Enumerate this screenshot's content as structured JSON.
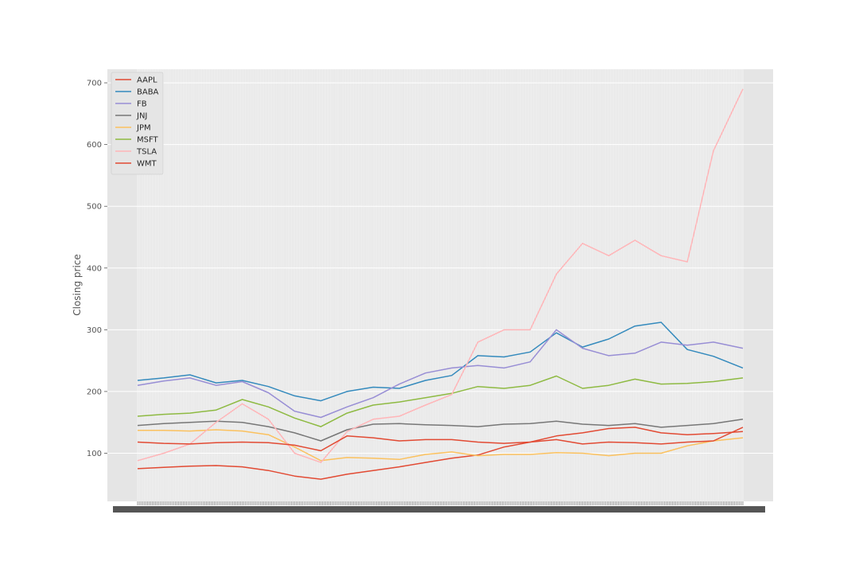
{
  "chart_data": {
    "type": "line",
    "title": "",
    "xlabel": "",
    "ylabel": "Closing price",
    "ylim": [
      22,
      722
    ],
    "yticks": [
      100,
      200,
      300,
      400,
      500,
      600,
      700
    ],
    "grid": true,
    "legend": "top-left",
    "x": [
      0,
      16,
      32,
      48,
      64,
      80,
      96,
      112,
      128,
      144,
      160,
      176,
      192,
      208,
      224,
      240,
      256,
      272,
      288,
      304,
      320,
      336,
      352,
      370
    ],
    "series": [
      {
        "name": "AAPL",
        "color": "#E24A33",
        "values": [
          75,
          77,
          79,
          80,
          78,
          72,
          63,
          58,
          66,
          72,
          78,
          85,
          92,
          97,
          110,
          118,
          128,
          133,
          140,
          142,
          133,
          130,
          132,
          135
        ]
      },
      {
        "name": "BABA",
        "color": "#348ABD",
        "values": [
          218,
          222,
          227,
          214,
          218,
          208,
          193,
          185,
          200,
          207,
          205,
          218,
          226,
          258,
          256,
          264,
          295,
          272,
          285,
          306,
          312,
          268,
          257,
          238
        ]
      },
      {
        "name": "FB",
        "color": "#988ED5",
        "values": [
          210,
          217,
          222,
          210,
          216,
          198,
          168,
          158,
          175,
          190,
          212,
          230,
          238,
          242,
          238,
          248,
          300,
          270,
          258,
          262,
          280,
          275,
          280,
          270
        ]
      },
      {
        "name": "JNJ",
        "color": "#777777",
        "values": [
          145,
          148,
          150,
          152,
          150,
          143,
          133,
          120,
          138,
          147,
          148,
          146,
          145,
          143,
          147,
          148,
          152,
          147,
          145,
          148,
          142,
          145,
          148,
          155
        ]
      },
      {
        "name": "JPM",
        "color": "#FBC15E",
        "values": [
          137,
          137,
          136,
          138,
          136,
          130,
          110,
          88,
          93,
          92,
          90,
          98,
          102,
          96,
          98,
          98,
          101,
          100,
          96,
          100,
          100,
          112,
          120,
          125
        ]
      },
      {
        "name": "MSFT",
        "color": "#8EBA42",
        "values": [
          160,
          163,
          165,
          170,
          187,
          175,
          157,
          143,
          165,
          178,
          183,
          190,
          197,
          208,
          205,
          210,
          225,
          205,
          210,
          220,
          212,
          213,
          216,
          222
        ]
      },
      {
        "name": "TSLA",
        "color": "#FFB5B8",
        "values": [
          88,
          100,
          115,
          150,
          180,
          155,
          100,
          85,
          135,
          155,
          160,
          178,
          195,
          280,
          300,
          300,
          390,
          440,
          420,
          445,
          420,
          410,
          590,
          690
        ]
      },
      {
        "name": "WMT",
        "color": "#E24A33",
        "values": [
          118,
          116,
          115,
          117,
          118,
          117,
          113,
          104,
          128,
          125,
          120,
          122,
          122,
          118,
          116,
          118,
          122,
          115,
          118,
          117,
          115,
          118,
          120,
          142
        ]
      }
    ]
  }
}
